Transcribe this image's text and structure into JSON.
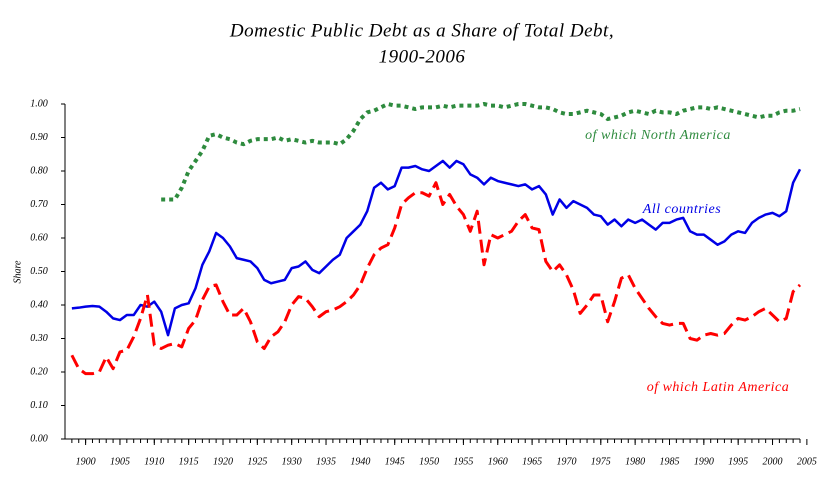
{
  "chart_data": {
    "type": "line",
    "title": [
      "Domestic  Public Debt as a Share of Total Debt,",
      "1900-2006"
    ],
    "ylabel": "Share",
    "x": [
      1898,
      1899,
      1900,
      1901,
      1902,
      1903,
      1904,
      1905,
      1906,
      1907,
      1908,
      1909,
      1910,
      1911,
      1912,
      1913,
      1914,
      1915,
      1916,
      1917,
      1918,
      1919,
      1920,
      1921,
      1922,
      1923,
      1924,
      1925,
      1926,
      1927,
      1928,
      1929,
      1930,
      1931,
      1932,
      1933,
      1934,
      1935,
      1936,
      1937,
      1938,
      1939,
      1940,
      1941,
      1942,
      1943,
      1944,
      1945,
      1946,
      1947,
      1948,
      1949,
      1950,
      1951,
      1952,
      1953,
      1954,
      1955,
      1956,
      1957,
      1958,
      1959,
      1960,
      1961,
      1962,
      1963,
      1964,
      1965,
      1966,
      1967,
      1968,
      1969,
      1970,
      1971,
      1972,
      1973,
      1974,
      1975,
      1976,
      1977,
      1978,
      1979,
      1980,
      1981,
      1982,
      1983,
      1984,
      1985,
      1986,
      1987,
      1988,
      1989,
      1990,
      1991,
      1992,
      1993,
      1994,
      1995,
      1996,
      1997,
      1998,
      1999,
      2000,
      2001,
      2002,
      2003,
      2004
    ],
    "series": [
      {
        "name": "All countries",
        "color": "#0000e6",
        "line_style": "solid",
        "values": [
          0.39,
          0.392,
          0.395,
          0.397,
          0.395,
          0.38,
          0.36,
          0.355,
          0.37,
          0.37,
          0.4,
          0.395,
          0.41,
          0.38,
          0.31,
          0.39,
          0.4,
          0.405,
          0.45,
          0.52,
          0.56,
          0.615,
          0.6,
          0.575,
          0.54,
          0.535,
          0.53,
          0.51,
          0.475,
          0.465,
          0.47,
          0.475,
          0.51,
          0.515,
          0.53,
          0.505,
          0.495,
          0.515,
          0.535,
          0.55,
          0.6,
          0.62,
          0.64,
          0.68,
          0.75,
          0.765,
          0.745,
          0.755,
          0.81,
          0.81,
          0.815,
          0.805,
          0.8,
          0.815,
          0.83,
          0.81,
          0.83,
          0.82,
          0.79,
          0.78,
          0.76,
          0.78,
          0.77,
          0.765,
          0.76,
          0.755,
          0.76,
          0.745,
          0.755,
          0.73,
          0.67,
          0.715,
          0.69,
          0.71,
          0.7,
          0.69,
          0.67,
          0.665,
          0.64,
          0.655,
          0.635,
          0.655,
          0.645,
          0.655,
          0.64,
          0.625,
          0.645,
          0.645,
          0.655,
          0.66,
          0.62,
          0.61,
          0.61,
          0.595,
          0.58,
          0.59,
          0.61,
          0.62,
          0.615,
          0.645,
          0.66,
          0.67,
          0.675,
          0.665,
          0.68,
          0.765,
          0.805
        ]
      },
      {
        "name": "of which Latin America",
        "color": "#ff0000",
        "line_style": "dashed",
        "values": [
          0.25,
          0.21,
          0.195,
          0.195,
          0.2,
          0.245,
          0.21,
          0.26,
          0.265,
          0.305,
          0.36,
          0.43,
          0.28,
          0.27,
          0.28,
          0.285,
          0.275,
          0.33,
          0.355,
          0.415,
          0.455,
          0.46,
          0.41,
          0.37,
          0.37,
          0.39,
          0.35,
          0.29,
          0.27,
          0.305,
          0.32,
          0.35,
          0.4,
          0.425,
          0.42,
          0.395,
          0.365,
          0.38,
          0.385,
          0.395,
          0.41,
          0.43,
          0.46,
          0.51,
          0.55,
          0.57,
          0.58,
          0.63,
          0.7,
          0.72,
          0.735,
          0.735,
          0.725,
          0.765,
          0.7,
          0.73,
          0.695,
          0.67,
          0.62,
          0.68,
          0.52,
          0.61,
          0.6,
          0.61,
          0.62,
          0.65,
          0.67,
          0.63,
          0.625,
          0.53,
          0.5,
          0.52,
          0.49,
          0.445,
          0.375,
          0.4,
          0.43,
          0.43,
          0.35,
          0.41,
          0.48,
          0.49,
          0.45,
          0.42,
          0.39,
          0.365,
          0.345,
          0.34,
          0.345,
          0.345,
          0.3,
          0.295,
          0.31,
          0.315,
          0.31,
          0.315,
          0.34,
          0.36,
          0.355,
          0.365,
          0.38,
          0.39,
          0.37,
          0.35,
          0.36,
          0.44,
          0.46
        ]
      },
      {
        "name": "of which North America",
        "color": "#2e8b3e",
        "line_style": "dotted",
        "values": [
          null,
          null,
          null,
          null,
          null,
          null,
          null,
          null,
          null,
          null,
          null,
          null,
          null,
          0.715,
          0.715,
          0.715,
          0.75,
          0.8,
          0.83,
          0.86,
          0.905,
          0.91,
          0.9,
          0.895,
          0.885,
          0.88,
          0.89,
          0.895,
          0.895,
          0.895,
          0.9,
          0.89,
          0.895,
          0.89,
          0.885,
          0.89,
          0.885,
          0.885,
          0.885,
          0.88,
          0.895,
          0.92,
          0.955,
          0.975,
          0.98,
          0.99,
          1.0,
          0.995,
          0.995,
          0.99,
          0.985,
          0.99,
          0.99,
          0.99,
          0.995,
          0.99,
          0.995,
          0.995,
          0.995,
          0.995,
          1.0,
          0.995,
          0.995,
          0.99,
          0.995,
          1.0,
          1.0,
          0.995,
          0.99,
          0.99,
          0.985,
          0.975,
          0.97,
          0.97,
          0.975,
          0.98,
          0.975,
          0.97,
          0.955,
          0.96,
          0.965,
          0.975,
          0.98,
          0.975,
          0.97,
          0.98,
          0.975,
          0.975,
          0.97,
          0.98,
          0.985,
          0.99,
          0.99,
          0.985,
          0.99,
          0.985,
          0.98,
          0.975,
          0.97,
          0.965,
          0.96,
          0.965,
          0.965,
          0.975,
          0.98,
          0.98,
          0.985
        ]
      }
    ],
    "xlim": [
      1897,
      2004
    ],
    "xticks": [
      1900,
      1905,
      1910,
      1915,
      1920,
      1925,
      1930,
      1935,
      1940,
      1945,
      1950,
      1955,
      1960,
      1965,
      1970,
      1975,
      1980,
      1985,
      1990,
      1995,
      2000,
      2005
    ],
    "ylim": [
      0,
      1
    ],
    "yticks": [
      {
        "value": 0,
        "label": "0.00"
      },
      {
        "value": 0.1,
        "label": "0.10"
      },
      {
        "value": 0.2,
        "label": "0.20"
      },
      {
        "value": 0.3,
        "label": "0.30"
      },
      {
        "value": 0.4,
        "label": "0.40"
      },
      {
        "value": 0.5,
        "label": "0.50"
      },
      {
        "value": 0.6,
        "label": "0.60"
      },
      {
        "value": 0.7,
        "label": "0.70"
      },
      {
        "value": 0.8,
        "label": "0.80"
      },
      {
        "value": 0.9,
        "label": "0.90"
      },
      {
        "value": 1,
        "label": "1.00"
      }
    ],
    "grid": false
  }
}
